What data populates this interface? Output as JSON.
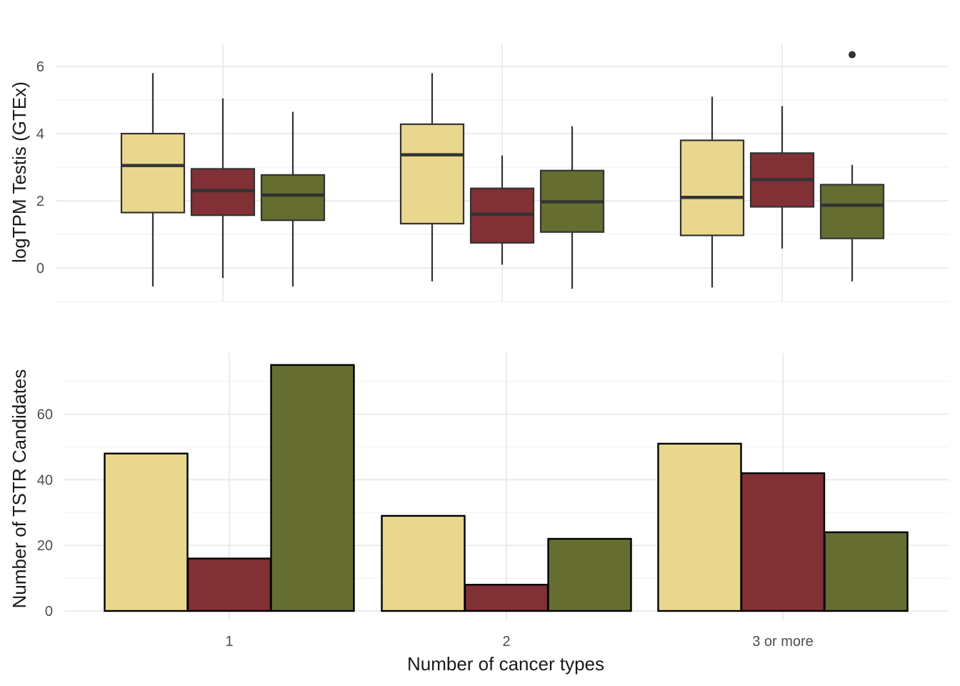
{
  "chart_data": [
    {
      "type": "box",
      "ylabel": "logTPM Testis (GTEx)",
      "categories": [
        "1",
        "2",
        "3 or more"
      ],
      "ylim": [
        -1,
        6.7
      ],
      "yticks": [
        0,
        2,
        4,
        6
      ],
      "grid": true,
      "series": [
        {
          "color": "#E9D78D",
          "boxes": [
            {
              "whisker_low": -0.55,
              "q1": 1.65,
              "median": 3.05,
              "q3": 4.0,
              "whisker_high": 5.8,
              "outliers": []
            },
            {
              "whisker_low": -0.4,
              "q1": 1.32,
              "median": 3.37,
              "q3": 4.28,
              "whisker_high": 5.8,
              "outliers": []
            },
            {
              "whisker_low": -0.58,
              "q1": 0.97,
              "median": 2.1,
              "q3": 3.8,
              "whisker_high": 5.1,
              "outliers": []
            }
          ]
        },
        {
          "color": "#813036",
          "boxes": [
            {
              "whisker_low": -0.3,
              "q1": 1.57,
              "median": 2.3,
              "q3": 2.95,
              "whisker_high": 5.05,
              "outliers": []
            },
            {
              "whisker_low": 0.1,
              "q1": 0.75,
              "median": 1.6,
              "q3": 2.37,
              "whisker_high": 3.35,
              "outliers": []
            },
            {
              "whisker_low": 0.58,
              "q1": 1.82,
              "median": 2.63,
              "q3": 3.42,
              "whisker_high": 4.82,
              "outliers": []
            }
          ]
        },
        {
          "color": "#656D31",
          "boxes": [
            {
              "whisker_low": -0.55,
              "q1": 1.42,
              "median": 2.17,
              "q3": 2.77,
              "whisker_high": 4.65,
              "outliers": []
            },
            {
              "whisker_low": -0.62,
              "q1": 1.07,
              "median": 1.97,
              "q3": 2.9,
              "whisker_high": 4.22,
              "outliers": []
            },
            {
              "whisker_low": -0.4,
              "q1": 0.88,
              "median": 1.87,
              "q3": 2.48,
              "whisker_high": 3.07,
              "outliers": [
                6.35
              ]
            }
          ]
        }
      ]
    },
    {
      "type": "bar",
      "ylabel": "Number of TSTR Candidates",
      "xlabel": "Number of cancer types",
      "categories": [
        "1",
        "2",
        "3 or more"
      ],
      "ylim": [
        0,
        79
      ],
      "yticks": [
        0,
        20,
        40,
        60
      ],
      "grid": true,
      "series": [
        {
          "color": "#E9D78D",
          "values": [
            48,
            29,
            51
          ]
        },
        {
          "color": "#813036",
          "values": [
            16,
            8,
            42
          ]
        },
        {
          "color": "#656D31",
          "values": [
            75,
            22,
            24
          ]
        }
      ]
    }
  ]
}
